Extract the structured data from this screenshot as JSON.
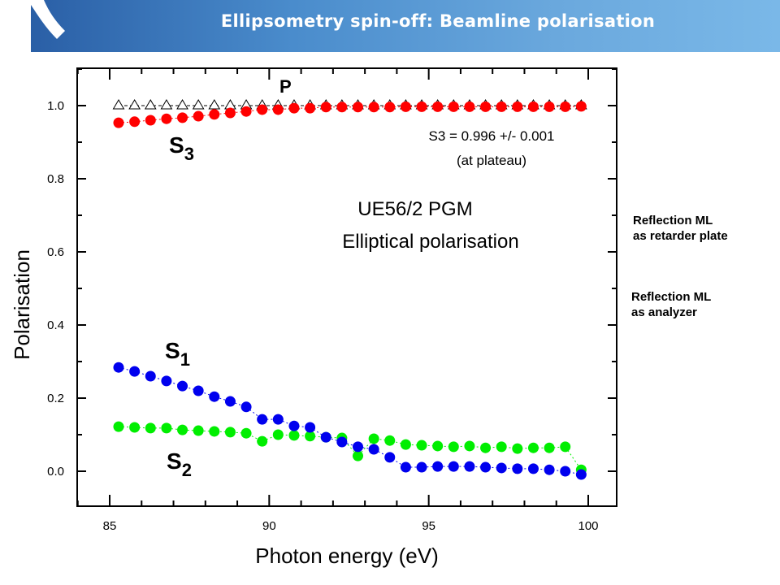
{
  "slide": {
    "title": "Ellipsometry spin-off: Beamline polarisation",
    "side_notes": [
      {
        "line1": "Reflection ML",
        "line2": "as retarder plate"
      },
      {
        "line1": "Reflection ML",
        "line2": "as analyzer"
      }
    ]
  },
  "colors": {
    "banner_start": "#2a5fa6",
    "banner_end": "#7ab8e8",
    "S3": "#ff0000",
    "S1": "#0000ee",
    "S2": "#00ee00",
    "P": "#000000"
  },
  "chart_data": {
    "type": "scatter",
    "title": "",
    "xlabel": "Photon energy (eV)",
    "ylabel": "Polarisation",
    "xlim": [
      84,
      101
    ],
    "ylim": [
      -0.1,
      1.1
    ],
    "x_ticks": [
      85,
      90,
      95,
      100
    ],
    "x_tick_labels": [
      "85",
      "90",
      "95",
      "100"
    ],
    "y_ticks": [
      0.0,
      0.2,
      0.4,
      0.6,
      0.8,
      1.0
    ],
    "y_tick_labels": [
      "0.0",
      "0.2",
      "0.4",
      "0.6",
      "0.8",
      "1.0"
    ],
    "grid": false,
    "x": [
      85.28,
      85.78,
      86.28,
      86.78,
      87.28,
      87.78,
      88.28,
      88.78,
      89.28,
      89.78,
      90.28,
      90.78,
      91.28,
      91.78,
      92.28,
      92.78,
      93.28,
      93.78,
      94.28,
      94.78,
      95.28,
      95.78,
      96.28,
      96.78,
      97.28,
      97.78,
      98.28,
      98.78,
      99.28,
      99.78
    ],
    "series": [
      {
        "name": "P",
        "label": "P",
        "marker": "open-triangle",
        "values": [
          1.0,
          1.0,
          1.0,
          1.0,
          1.0,
          1.0,
          1.0,
          1.0,
          1.0,
          1.0,
          1.0,
          1.0,
          1.0,
          1.0,
          1.0,
          1.0,
          1.0,
          1.0,
          1.0,
          1.0,
          1.0,
          1.0,
          1.0,
          1.0,
          1.0,
          1.0,
          1.0,
          1.0,
          1.0,
          1.0
        ]
      },
      {
        "name": "S3",
        "label": "S",
        "subscript": "3",
        "marker": "filled-circle",
        "values": [
          0.953,
          0.956,
          0.96,
          0.964,
          0.967,
          0.971,
          0.976,
          0.98,
          0.984,
          0.989,
          0.989,
          0.993,
          0.993,
          0.996,
          0.996,
          0.996,
          0.996,
          0.996,
          0.997,
          0.997,
          0.997,
          0.997,
          0.997,
          0.997,
          0.997,
          0.997,
          0.997,
          0.997,
          0.997,
          0.998
        ]
      },
      {
        "name": "S1",
        "label": "S",
        "subscript": "1",
        "marker": "filled-circle",
        "values": [
          0.284,
          0.273,
          0.26,
          0.247,
          0.233,
          0.22,
          0.204,
          0.191,
          0.176,
          0.142,
          0.142,
          0.124,
          0.12,
          0.093,
          0.08,
          0.067,
          0.06,
          0.038,
          0.011,
          0.011,
          0.013,
          0.013,
          0.013,
          0.011,
          0.009,
          0.007,
          0.007,
          0.004,
          0.0,
          -0.009
        ]
      },
      {
        "name": "S2",
        "label": "S",
        "subscript": "2",
        "marker": "filled-circle",
        "values": [
          0.122,
          0.12,
          0.118,
          0.118,
          0.113,
          0.111,
          0.109,
          0.107,
          0.104,
          0.082,
          0.1,
          0.098,
          0.096,
          0.093,
          0.091,
          0.042,
          0.089,
          0.084,
          0.073,
          0.071,
          0.069,
          0.067,
          0.069,
          0.064,
          0.067,
          0.062,
          0.064,
          0.064,
          0.067,
          0.004
        ]
      }
    ],
    "annotations": [
      {
        "id": "s3-result",
        "text": "S3 = 0.996 +/- 0.001"
      },
      {
        "id": "s3-note",
        "text": "(at plateau)"
      },
      {
        "id": "beamline",
        "text": "UE56/2 PGM"
      },
      {
        "id": "mode",
        "text": "Elliptical polarisation"
      }
    ]
  }
}
